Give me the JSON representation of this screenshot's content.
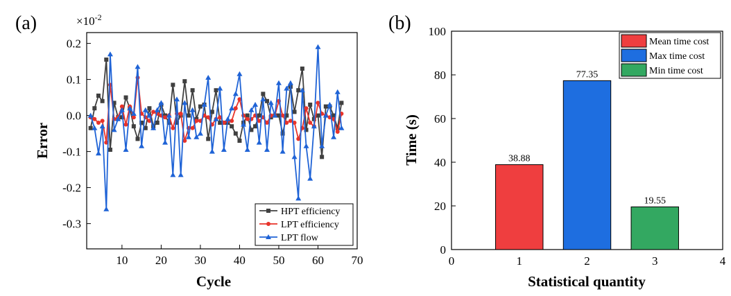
{
  "panels": {
    "a": {
      "label": "(a)"
    },
    "b": {
      "label": "(b)"
    }
  },
  "chart_data": [
    {
      "type": "line",
      "panel": "(a)",
      "xlabel": "Cycle",
      "ylabel": "Error",
      "y_multiplier": "×10",
      "y_multiplier_exp": "-2",
      "xlim": [
        1,
        70
      ],
      "ylim": [
        -0.37,
        0.23
      ],
      "x_ticks": [
        10,
        20,
        30,
        40,
        50,
        60,
        70
      ],
      "y_ticks": [
        -0.3,
        -0.2,
        -0.1,
        0.0,
        0.1,
        0.2
      ],
      "y_tick_labels": [
        "-0.3",
        "-0.2",
        "-0.1",
        "0.0",
        "0.1",
        "0.2"
      ],
      "grid": false,
      "legend_position": "bottom-right",
      "x": [
        2,
        3,
        4,
        5,
        6,
        7,
        8,
        9,
        10,
        11,
        12,
        13,
        14,
        15,
        16,
        17,
        18,
        19,
        20,
        21,
        22,
        23,
        24,
        25,
        26,
        27,
        28,
        29,
        30,
        31,
        32,
        33,
        34,
        35,
        36,
        37,
        38,
        39,
        40,
        41,
        42,
        43,
        44,
        45,
        46,
        47,
        48,
        49,
        50,
        51,
        52,
        53,
        54,
        55,
        56,
        57,
        58,
        59,
        60,
        61,
        62,
        63,
        64,
        65,
        66
      ],
      "series": [
        {
          "name": "HPT efficiency",
          "color": "#404040",
          "marker": "square",
          "values": [
            -0.035,
            0.02,
            0.055,
            0.04,
            0.155,
            -0.095,
            0.035,
            -0.005,
            -0.005,
            0.05,
            0.02,
            -0.03,
            -0.065,
            -0.02,
            -0.035,
            0.02,
            -0.03,
            -0.02,
            0.03,
            0.0,
            -0.02,
            0.085,
            -0.02,
            0.0,
            0.095,
            0.0,
            0.07,
            -0.01,
            0.025,
            0.03,
            -0.065,
            0.01,
            0.07,
            -0.02,
            -0.02,
            -0.02,
            -0.03,
            -0.05,
            -0.07,
            -0.02,
            0.0,
            -0.04,
            -0.03,
            0.0,
            0.06,
            0.04,
            -0.005,
            0.0,
            0.0,
            -0.05,
            0.0,
            0.08,
            0.01,
            0.07,
            0.13,
            -0.04,
            0.03,
            -0.01,
            0.0,
            -0.115,
            0.025,
            0.025,
            0.0,
            -0.035,
            0.035
          ]
        },
        {
          "name": "LPT efficiency",
          "color": "#e8332a",
          "marker": "circle",
          "values": [
            -0.005,
            -0.01,
            -0.02,
            -0.015,
            -0.075,
            0.085,
            -0.01,
            -0.005,
            0.025,
            -0.025,
            0.025,
            -0.005,
            0.105,
            0.005,
            -0.005,
            -0.015,
            0.01,
            0.005,
            0.0,
            -0.005,
            0.0,
            -0.035,
            0.005,
            0.005,
            -0.07,
            -0.035,
            -0.035,
            -0.015,
            -0.015,
            0.0,
            -0.005,
            -0.025,
            -0.01,
            -0.005,
            -0.02,
            -0.015,
            -0.015,
            0.02,
            0.045,
            0.0,
            -0.01,
            -0.01,
            0.0,
            -0.015,
            -0.005,
            -0.02,
            0.0,
            0.0,
            0.04,
            0.0,
            -0.02,
            -0.015,
            -0.02,
            -0.065,
            -0.035,
            0.02,
            -0.02,
            -0.03,
            0.035,
            0.005,
            0.0,
            -0.005,
            -0.01,
            -0.045,
            0.005
          ]
        },
        {
          "name": "LPT flow",
          "color": "#1f63d6",
          "marker": "triangle",
          "values": [
            0.0,
            -0.035,
            -0.105,
            -0.03,
            -0.26,
            0.17,
            -0.04,
            -0.01,
            0.015,
            -0.095,
            0.02,
            0.005,
            0.135,
            -0.085,
            0.015,
            0.0,
            -0.035,
            0.015,
            0.035,
            -0.075,
            0.0,
            -0.165,
            0.045,
            -0.165,
            0.035,
            -0.06,
            0.015,
            -0.06,
            -0.05,
            0.03,
            0.105,
            -0.1,
            -0.01,
            0.075,
            -0.095,
            -0.01,
            0.02,
            0.06,
            0.115,
            -0.025,
            -0.095,
            0.015,
            0.03,
            -0.075,
            0.045,
            -0.095,
            0.035,
            0.0,
            0.09,
            -0.1,
            0.075,
            0.09,
            -0.115,
            -0.23,
            0.07,
            -0.085,
            -0.175,
            -0.03,
            0.19,
            -0.085,
            0.0,
            0.03,
            -0.06,
            0.065,
            -0.035
          ]
        }
      ]
    },
    {
      "type": "bar",
      "panel": "(b)",
      "xlabel": "Statistical quantity",
      "ylabel": "Time (s)",
      "xlim": [
        0,
        4
      ],
      "ylim": [
        0,
        100
      ],
      "x_ticks": [
        0,
        1,
        2,
        3,
        4
      ],
      "y_ticks": [
        0,
        20,
        40,
        60,
        80,
        100
      ],
      "grid": false,
      "legend_position": "top-right",
      "series": [
        {
          "name": "Mean time cost",
          "x": 1,
          "value": 38.88,
          "label": "38.88",
          "color": "#ef3e3f"
        },
        {
          "name": "Max time cost",
          "x": 2,
          "value": 77.35,
          "label": "77.35",
          "color": "#1e6ee0"
        },
        {
          "name": "Min time cost",
          "x": 3,
          "value": 19.55,
          "label": "19.55",
          "color": "#33a861"
        }
      ]
    }
  ]
}
